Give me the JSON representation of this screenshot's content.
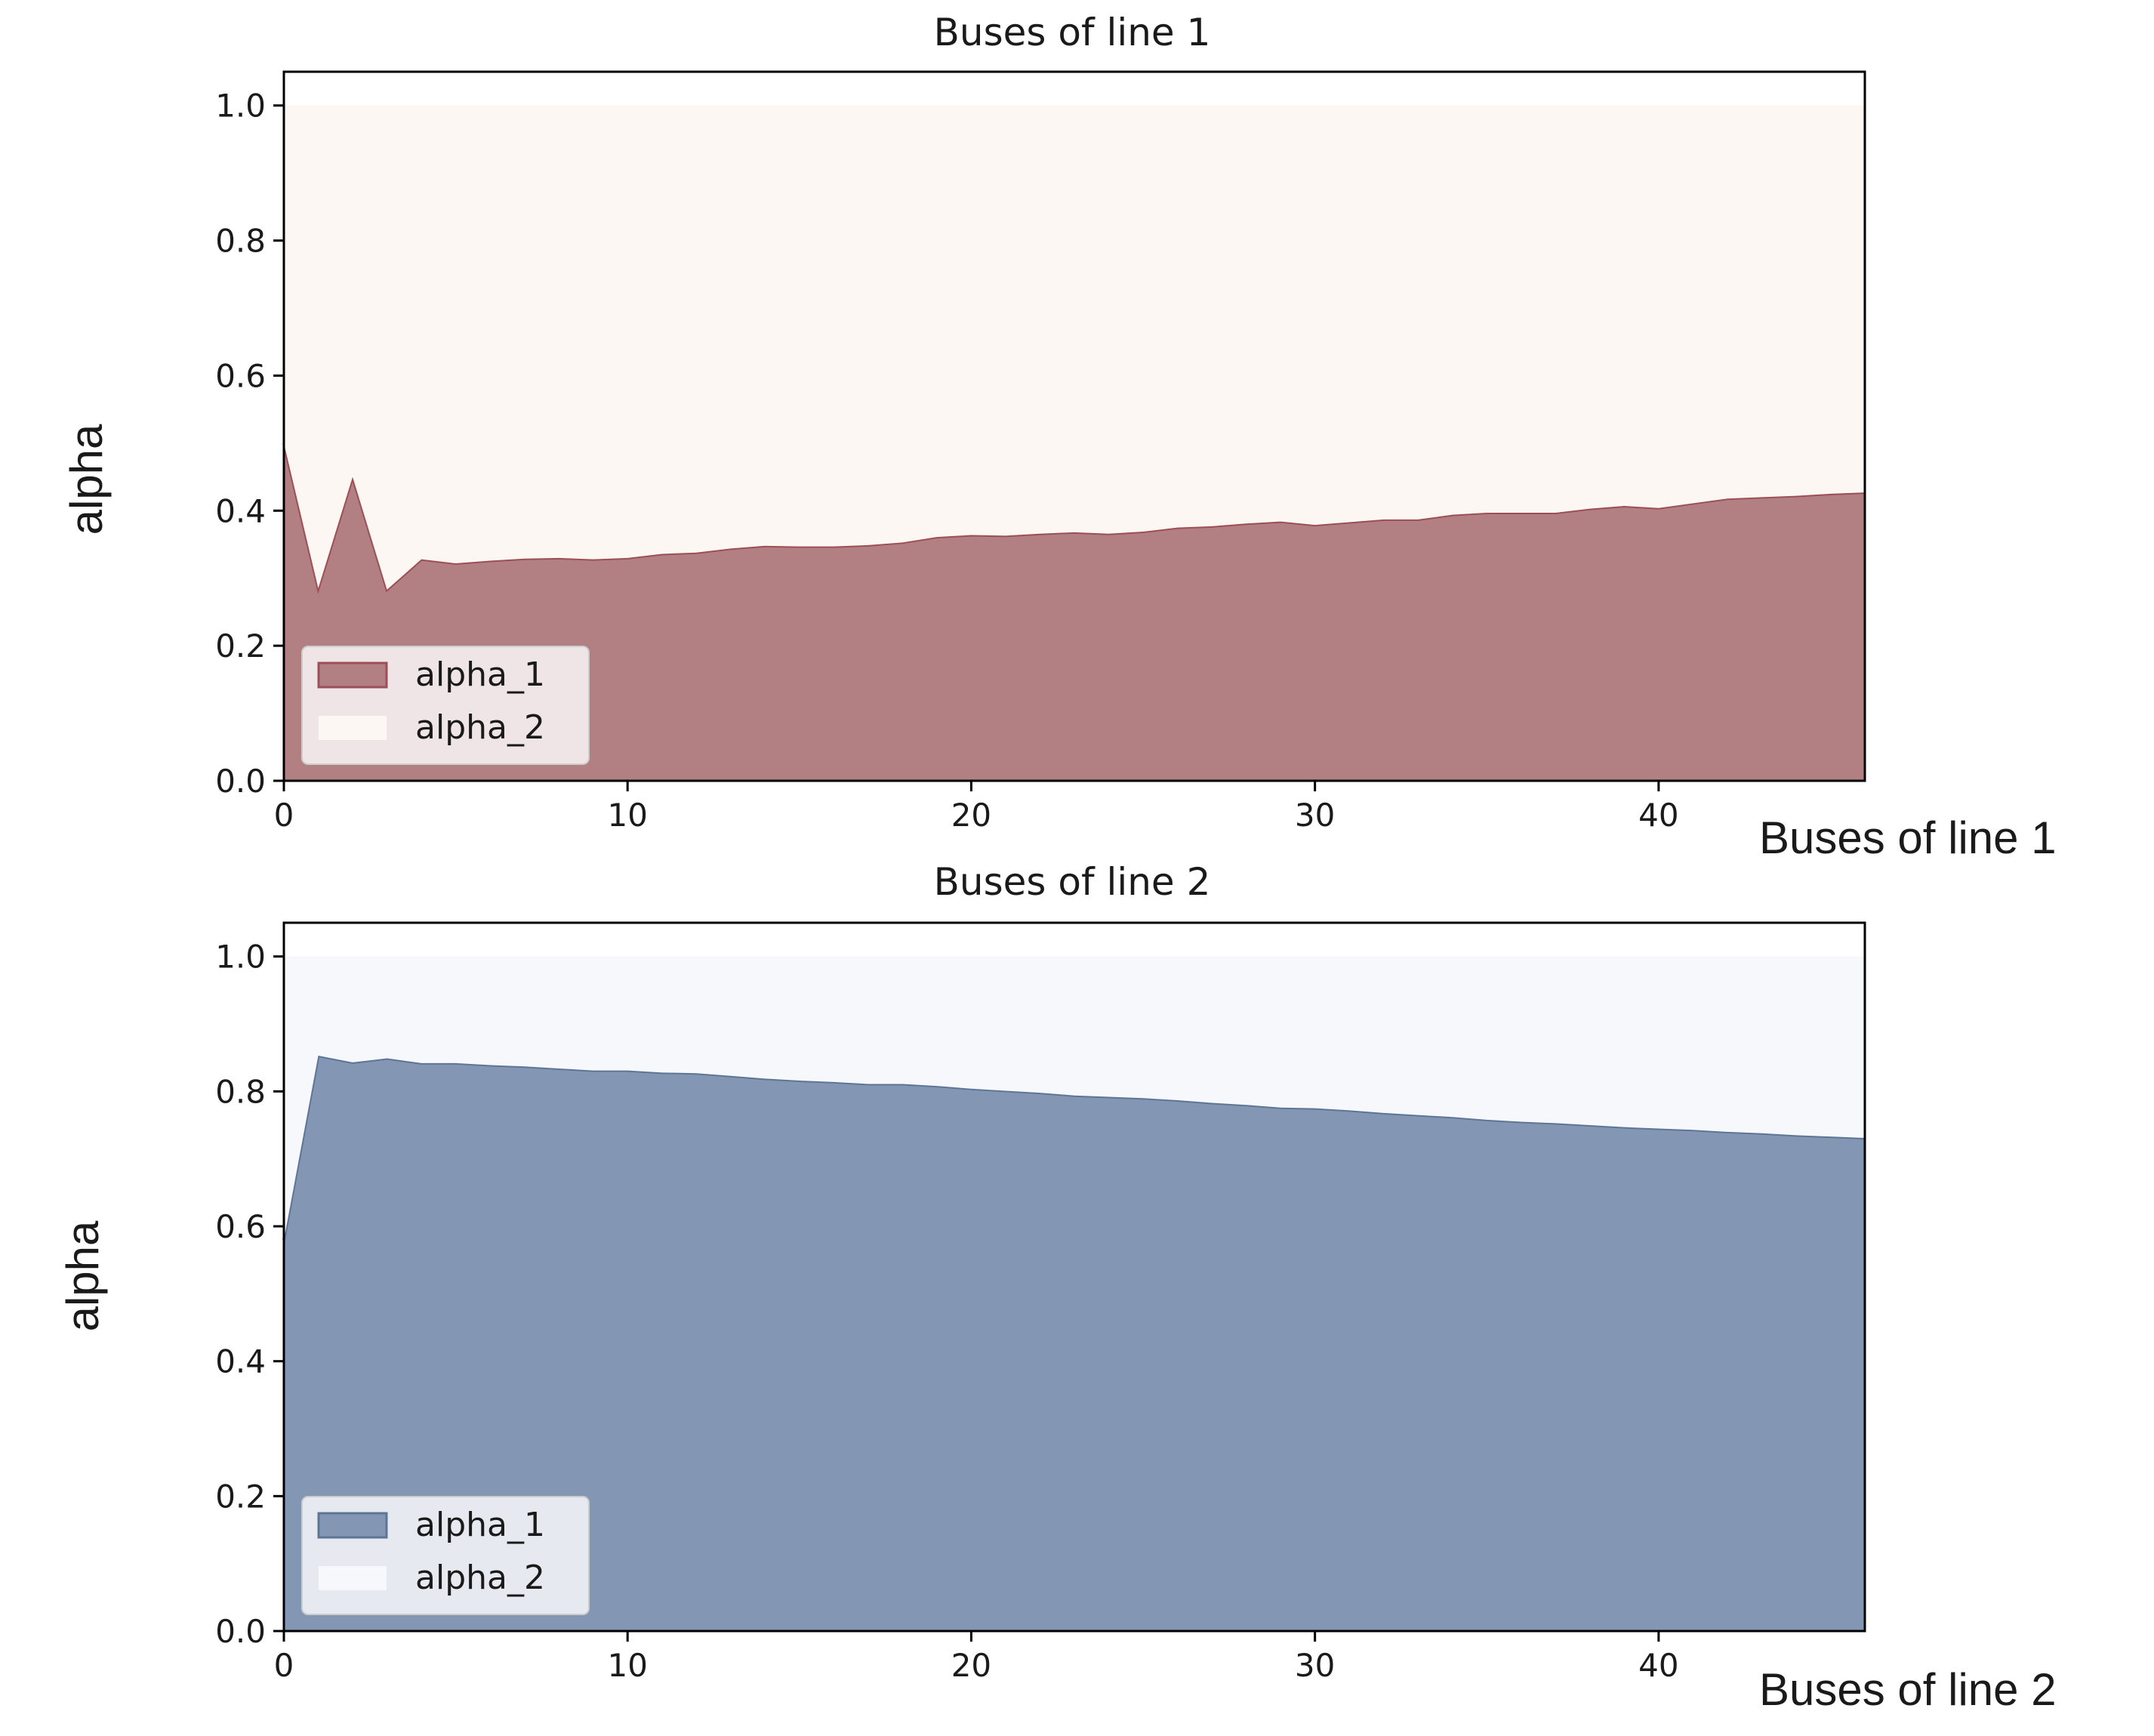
{
  "chart_data": [
    {
      "type": "area",
      "title": "Buses of line 1",
      "xlabel": "Buses of line 1",
      "ylabel": "alpha",
      "xlim": [
        0,
        46
      ],
      "ylim": [
        0,
        1.05
      ],
      "x_ticks": [
        0,
        10,
        20,
        30,
        40
      ],
      "y_ticks": [
        0.0,
        0.2,
        0.4,
        0.6,
        0.8,
        1.0
      ],
      "y_tick_labels": [
        "0.0",
        "0.2",
        "0.4",
        "0.6",
        "0.8",
        "1.0"
      ],
      "stacked": true,
      "legend_position": "lower-left",
      "grid": false,
      "x": [
        0,
        1,
        2,
        3,
        4,
        5,
        6,
        7,
        8,
        9,
        10,
        11,
        12,
        13,
        14,
        15,
        16,
        17,
        18,
        19,
        20,
        21,
        22,
        23,
        24,
        25,
        26,
        27,
        28,
        29,
        30,
        31,
        32,
        33,
        34,
        35,
        36,
        37,
        38,
        39,
        40,
        41,
        42,
        43,
        44,
        45,
        46
      ],
      "series": [
        {
          "name": "alpha_1",
          "color": "#b27f82",
          "edge_color": "#9c4f55",
          "values": [
            0.5,
            0.285,
            0.45,
            0.283,
            0.328,
            0.322,
            0.326,
            0.329,
            0.33,
            0.328,
            0.33,
            0.336,
            0.338,
            0.344,
            0.348,
            0.347,
            0.347,
            0.349,
            0.353,
            0.361,
            0.364,
            0.363,
            0.366,
            0.368,
            0.366,
            0.369,
            0.375,
            0.377,
            0.381,
            0.384,
            0.379,
            0.383,
            0.387,
            0.387,
            0.394,
            0.397,
            0.397,
            0.397,
            0.403,
            0.407,
            0.404,
            0.411,
            0.418,
            0.42,
            0.422,
            0.425,
            0.427
          ]
        },
        {
          "name": "alpha_2",
          "color": "#fdf7f4",
          "values": [
            0.5,
            0.715,
            0.55,
            0.717,
            0.672,
            0.678,
            0.674,
            0.671,
            0.67,
            0.672,
            0.67,
            0.664,
            0.662,
            0.656,
            0.652,
            0.653,
            0.653,
            0.651,
            0.647,
            0.639,
            0.636,
            0.637,
            0.634,
            0.632,
            0.634,
            0.631,
            0.625,
            0.623,
            0.619,
            0.616,
            0.621,
            0.617,
            0.613,
            0.613,
            0.606,
            0.603,
            0.603,
            0.603,
            0.597,
            0.593,
            0.596,
            0.589,
            0.582,
            0.58,
            0.578,
            0.575,
            0.573
          ]
        }
      ]
    },
    {
      "type": "area",
      "title": "Buses of line 2",
      "xlabel": "Buses of line 2",
      "ylabel": "alpha",
      "xlim": [
        0,
        46
      ],
      "ylim": [
        0,
        1.05
      ],
      "x_ticks": [
        0,
        10,
        20,
        30,
        40
      ],
      "y_ticks": [
        0.0,
        0.2,
        0.4,
        0.6,
        0.8,
        1.0
      ],
      "y_tick_labels": [
        "0.0",
        "0.2",
        "0.4",
        "0.6",
        "0.8",
        "1.0"
      ],
      "stacked": true,
      "legend_position": "lower-left",
      "grid": false,
      "x": [
        0,
        1,
        2,
        3,
        4,
        5,
        6,
        7,
        8,
        9,
        10,
        11,
        12,
        13,
        14,
        15,
        16,
        17,
        18,
        19,
        20,
        21,
        22,
        23,
        24,
        25,
        26,
        27,
        28,
        29,
        30,
        31,
        32,
        33,
        34,
        35,
        36,
        37,
        38,
        39,
        40,
        41,
        42,
        43,
        44,
        45,
        46
      ],
      "series": [
        {
          "name": "alpha_1",
          "color": "#8396b3",
          "edge_color": "#5f7596",
          "values": [
            0.58,
            0.853,
            0.843,
            0.849,
            0.842,
            0.842,
            0.839,
            0.837,
            0.834,
            0.831,
            0.831,
            0.828,
            0.827,
            0.823,
            0.819,
            0.816,
            0.814,
            0.811,
            0.811,
            0.808,
            0.804,
            0.801,
            0.798,
            0.794,
            0.792,
            0.79,
            0.787,
            0.783,
            0.78,
            0.776,
            0.775,
            0.772,
            0.768,
            0.765,
            0.762,
            0.758,
            0.755,
            0.753,
            0.75,
            0.747,
            0.745,
            0.743,
            0.74,
            0.738,
            0.735,
            0.733,
            0.731
          ]
        },
        {
          "name": "alpha_2",
          "color": "#f6f8fb",
          "values": [
            0.42,
            0.147,
            0.157,
            0.151,
            0.158,
            0.158,
            0.161,
            0.163,
            0.166,
            0.169,
            0.169,
            0.172,
            0.173,
            0.177,
            0.181,
            0.184,
            0.186,
            0.189,
            0.189,
            0.192,
            0.196,
            0.199,
            0.202,
            0.206,
            0.208,
            0.21,
            0.213,
            0.217,
            0.22,
            0.224,
            0.225,
            0.228,
            0.232,
            0.235,
            0.238,
            0.242,
            0.245,
            0.247,
            0.25,
            0.253,
            0.255,
            0.257,
            0.26,
            0.262,
            0.265,
            0.267,
            0.269
          ]
        }
      ]
    }
  ]
}
